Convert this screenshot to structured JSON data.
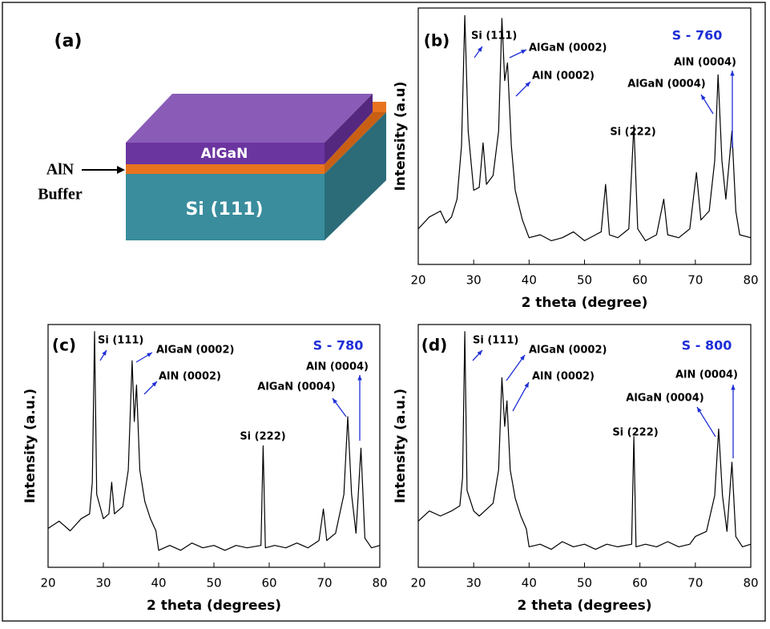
{
  "diagram": {
    "label": "(a)",
    "layers": [
      "AlGaN",
      "Si (111)"
    ],
    "buffer": [
      "AlN",
      "Buffer"
    ]
  },
  "chart_data": [
    {
      "type": "line",
      "label": "(b)",
      "title": "S - 760",
      "xlabel": "2 theta (degree)",
      "ylabel": "Intensity (a.u)",
      "xlim": [
        20,
        80
      ],
      "xticks": [
        20,
        30,
        40,
        50,
        60,
        70,
        80
      ],
      "annotations": [
        "Si (111)",
        "AlGaN (0002)",
        "AlN (0002)",
        "Si (222)",
        "AlGaN (0004)",
        "AlN (0004)"
      ],
      "series": [
        {
          "color": "#000000",
          "x": [
            20,
            22,
            24,
            25,
            26,
            27,
            27.8,
            28.4,
            29,
            30,
            31,
            31.7,
            32.3,
            33.5,
            34.5,
            35.1,
            35.6,
            36.1,
            36.8,
            37.5,
            38,
            38.8,
            40,
            42,
            44,
            46,
            48,
            50,
            52,
            53,
            53.8,
            54.5,
            56,
            58,
            58.9,
            59.6,
            61,
            63,
            64.3,
            65,
            67,
            69,
            70.2,
            71,
            72.5,
            73.5,
            74.1,
            74.8,
            75.5,
            76.6,
            77.3,
            78,
            80
          ],
          "values": [
            12,
            16,
            18,
            14,
            16,
            22,
            40,
            84,
            45,
            25,
            26,
            41,
            27,
            30,
            45,
            83,
            62,
            68,
            40,
            25,
            21,
            15,
            9,
            10,
            8,
            9,
            11,
            8,
            10,
            11,
            27,
            10,
            9,
            12,
            47,
            12,
            8,
            10,
            22,
            10,
            9,
            12,
            31,
            15,
            18,
            35,
            64,
            35,
            22,
            45,
            18,
            10,
            9
          ]
        }
      ]
    },
    {
      "type": "line",
      "label": "(c)",
      "title": "S - 780",
      "xlabel": "2 theta (degrees)",
      "ylabel": "Intensity (a.u.)",
      "xlim": [
        20,
        80
      ],
      "xticks": [
        20,
        30,
        40,
        50,
        60,
        70,
        80
      ],
      "annotations": [
        "Si (111)",
        "AlGaN (0002)",
        "AlN (0002)",
        "Si (222)",
        "AlGaN (0004)",
        "AlN (0004)"
      ],
      "series": [
        {
          "color": "#000000",
          "x": [
            20,
            22,
            24,
            26,
            27.5,
            28,
            28.4,
            28.8,
            30,
            31,
            31.5,
            32,
            33.5,
            34.5,
            35.2,
            35.6,
            36,
            36.6,
            37.5,
            38.5,
            39.5,
            40,
            42,
            44,
            46,
            48,
            50,
            52,
            54,
            56,
            58.5,
            58.9,
            59.3,
            61,
            63,
            65,
            67,
            69,
            69.8,
            70.4,
            72,
            73.5,
            74.2,
            74.9,
            75.7,
            76.6,
            77.3,
            78.5,
            80
          ],
          "values": [
            16,
            19,
            15,
            20,
            22,
            35,
            97,
            30,
            20,
            22,
            35,
            22,
            25,
            40,
            85,
            60,
            75,
            40,
            27,
            20,
            15,
            7,
            9,
            7,
            10,
            8,
            9,
            7,
            9,
            8,
            9,
            50,
            8,
            9,
            8,
            10,
            8,
            11,
            24,
            11,
            14,
            30,
            62,
            30,
            14,
            49,
            12,
            8,
            9
          ]
        }
      ]
    },
    {
      "type": "line",
      "label": "(d)",
      "title": "S - 800",
      "xlabel": "2 theta (degrees)",
      "ylabel": "Intensity (a.u.)",
      "xlim": [
        20,
        80
      ],
      "xticks": [
        20,
        30,
        40,
        50,
        60,
        70,
        80
      ],
      "annotations": [
        "Si (111)",
        "AlGaN (0002)",
        "AlN (0002)",
        "Si (222)",
        "AlGaN (0004)",
        "AlN (0004)"
      ],
      "series": [
        {
          "color": "#000000",
          "x": [
            20,
            22,
            24,
            26,
            27.5,
            28,
            28.4,
            28.8,
            30,
            31,
            32,
            33.5,
            34.5,
            35.1,
            35.6,
            36,
            36.6,
            37.5,
            38.5,
            39.5,
            40,
            42,
            44,
            46,
            48,
            50,
            52,
            54,
            56,
            58.5,
            58.9,
            59.3,
            61,
            63,
            65,
            67,
            69,
            70,
            72,
            73.5,
            74.2,
            74.9,
            75.7,
            76.6,
            77.3,
            78.5,
            80
          ],
          "values": [
            18,
            22,
            20,
            22,
            24,
            35,
            92,
            30,
            22,
            20,
            22,
            25,
            38,
            74,
            55,
            65,
            38,
            27,
            20,
            15,
            8,
            9,
            7,
            10,
            8,
            9,
            7,
            9,
            8,
            9,
            51,
            8,
            9,
            8,
            10,
            8,
            9,
            12,
            14,
            28,
            54,
            28,
            14,
            41,
            12,
            8,
            9
          ]
        }
      ]
    }
  ]
}
